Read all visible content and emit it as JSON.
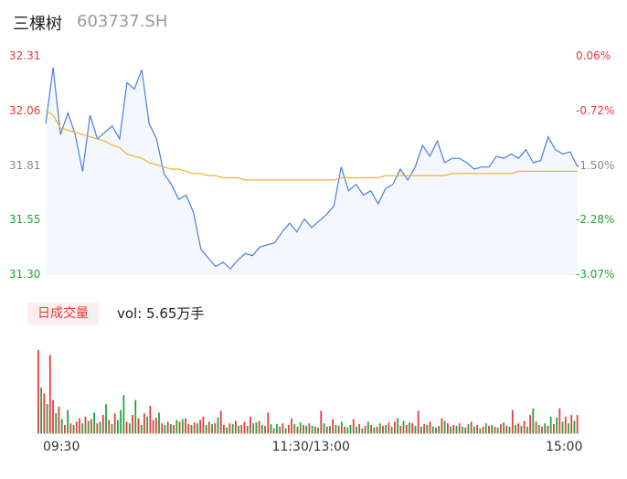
{
  "header": {
    "name": "三棵树",
    "code": "603737.SH"
  },
  "volume_panel": {
    "tab_label": "日成交量",
    "vol_text": "vol: 5.65万手"
  },
  "colors": {
    "price_line": "#4a7ee0",
    "avg_line": "#f0b12a",
    "area_fill": "#f4f7fd",
    "up": "#e63a3a",
    "down": "#1fa53a",
    "neutral": "#888888"
  },
  "chart_data": [
    {
      "type": "line",
      "y_ticks_left": [
        "32.31",
        "32.06",
        "31.81",
        "31.55",
        "31.30"
      ],
      "y_ticks_right": [
        "0.06%",
        "-0.72%",
        "-1.50%",
        "-2.28%",
        "-3.07%"
      ],
      "y_tick_colors": [
        "up",
        "up",
        "neutral",
        "down",
        "down"
      ],
      "x_ticks": [
        "09:30",
        "11:30/13:00",
        "15:00"
      ],
      "ylim": [
        31.3,
        32.31
      ],
      "series": [
        {
          "role": "price",
          "values": [
            32.0,
            32.26,
            31.95,
            32.05,
            31.95,
            31.78,
            32.04,
            31.93,
            31.96,
            31.99,
            31.93,
            32.19,
            32.16,
            32.25,
            32.0,
            31.93,
            31.77,
            31.72,
            31.65,
            31.67,
            31.59,
            31.42,
            31.38,
            31.34,
            31.36,
            31.33,
            31.37,
            31.4,
            31.39,
            31.43,
            31.44,
            31.45,
            31.5,
            31.54,
            31.5,
            31.56,
            31.52,
            31.55,
            31.58,
            31.62,
            31.8,
            31.69,
            31.72,
            31.67,
            31.69,
            31.63,
            31.7,
            31.72,
            31.79,
            31.74,
            31.8,
            31.9,
            31.85,
            31.92,
            31.82,
            31.84,
            31.84,
            31.82,
            31.79,
            31.8,
            31.8,
            31.85,
            31.84,
            31.86,
            31.84,
            31.88,
            31.82,
            31.83,
            31.94,
            31.88,
            31.86,
            31.87,
            31.8
          ]
        },
        {
          "role": "average",
          "values": [
            32.06,
            32.04,
            31.98,
            31.97,
            31.96,
            31.95,
            31.94,
            31.93,
            31.92,
            31.9,
            31.89,
            31.86,
            31.85,
            31.84,
            31.82,
            31.81,
            31.8,
            31.79,
            31.79,
            31.78,
            31.77,
            31.77,
            31.76,
            31.76,
            31.75,
            31.75,
            31.75,
            31.74,
            31.74,
            31.74,
            31.74,
            31.74,
            31.74,
            31.74,
            31.74,
            31.74,
            31.74,
            31.74,
            31.74,
            31.74,
            31.75,
            31.75,
            31.75,
            31.75,
            31.75,
            31.75,
            31.76,
            31.76,
            31.76,
            31.76,
            31.76,
            31.76,
            31.76,
            31.76,
            31.76,
            31.77,
            31.77,
            31.77,
            31.77,
            31.77,
            31.77,
            31.77,
            31.77,
            31.77,
            31.78,
            31.78,
            31.78,
            31.78,
            31.78,
            31.78,
            31.78,
            31.78,
            31.78
          ]
        }
      ]
    },
    {
      "type": "bar",
      "role": "volume",
      "volumes": [
        100,
        55,
        48,
        35,
        94,
        40,
        24,
        32,
        17,
        10,
        28,
        12,
        10,
        14,
        18,
        12,
        20,
        15,
        17,
        25,
        12,
        14,
        22,
        35,
        16,
        11,
        24,
        16,
        28,
        46,
        14,
        12,
        22,
        40,
        18,
        10,
        24,
        20,
        33,
        16,
        19,
        25,
        12,
        10,
        14,
        11,
        10,
        16,
        14,
        17,
        18,
        11,
        10,
        13,
        12,
        16,
        20,
        10,
        14,
        11,
        12,
        19,
        27,
        10,
        7,
        12,
        11,
        15,
        9,
        10,
        14,
        9,
        20,
        12,
        13,
        15,
        10,
        9,
        25,
        11,
        6,
        11,
        8,
        12,
        6,
        10,
        18,
        11,
        8,
        13,
        10,
        9,
        12,
        9,
        8,
        7,
        27,
        12,
        8,
        9,
        17,
        10,
        9,
        14,
        8,
        7,
        10,
        17,
        8,
        11,
        6,
        9,
        14,
        10,
        7,
        8,
        12,
        9,
        10,
        13,
        8,
        14,
        18,
        9,
        15,
        10,
        13,
        12,
        9,
        27,
        8,
        11,
        10,
        14,
        8,
        7,
        9,
        18,
        15,
        12,
        8,
        10,
        9,
        12,
        8,
        7,
        11,
        14,
        8,
        10,
        6,
        8,
        12,
        9,
        10,
        8,
        7,
        11,
        13,
        9,
        8,
        28,
        10,
        12,
        9,
        15,
        8,
        22,
        30,
        14,
        10,
        8,
        12,
        9,
        20,
        11,
        19,
        30,
        14,
        20,
        12,
        22,
        15,
        22
      ],
      "directions": [
        "up",
        "down",
        "up",
        "down",
        "up",
        "up",
        "down",
        "up",
        "down",
        "up",
        "down",
        "up",
        "down",
        "up",
        "up",
        "down",
        "up",
        "down",
        "up",
        "down",
        "up",
        "down",
        "up",
        "down",
        "up",
        "down",
        "up",
        "down",
        "down",
        "down",
        "up",
        "down",
        "up",
        "down",
        "up",
        "down",
        "up",
        "down",
        "up",
        "up",
        "up",
        "down",
        "up",
        "down",
        "up",
        "down",
        "up",
        "down",
        "up",
        "down",
        "up",
        "up",
        "down",
        "up",
        "down",
        "up",
        "up",
        "down",
        "up",
        "down",
        "up",
        "down",
        "up",
        "up",
        "down",
        "up",
        "down",
        "up",
        "down",
        "up",
        "up",
        "down",
        "up",
        "down",
        "down",
        "up",
        "down",
        "up",
        "up",
        "down",
        "up",
        "down",
        "down",
        "up",
        "down",
        "up",
        "up",
        "down",
        "up",
        "down",
        "up",
        "down",
        "up",
        "down",
        "up",
        "down",
        "up",
        "down",
        "up",
        "down",
        "up",
        "down",
        "up",
        "down",
        "up",
        "down",
        "down",
        "up",
        "down",
        "up",
        "down",
        "up",
        "down",
        "up",
        "down",
        "up",
        "down",
        "up",
        "down",
        "up",
        "down",
        "up",
        "down",
        "up",
        "down",
        "up",
        "down",
        "up",
        "down",
        "up",
        "down",
        "up",
        "down",
        "up",
        "down",
        "up",
        "down",
        "up",
        "down",
        "up",
        "down",
        "up",
        "down",
        "up",
        "down",
        "up",
        "down",
        "up",
        "down",
        "up",
        "down",
        "up",
        "down",
        "up",
        "down",
        "up",
        "down",
        "up",
        "down",
        "up",
        "down",
        "up",
        "down",
        "up",
        "down",
        "up",
        "down",
        "up",
        "down",
        "up",
        "down",
        "up",
        "down",
        "up",
        "down",
        "up",
        "down",
        "up",
        "down",
        "up",
        "down",
        "up",
        "down",
        "up",
        "up",
        "up"
      ]
    }
  ]
}
